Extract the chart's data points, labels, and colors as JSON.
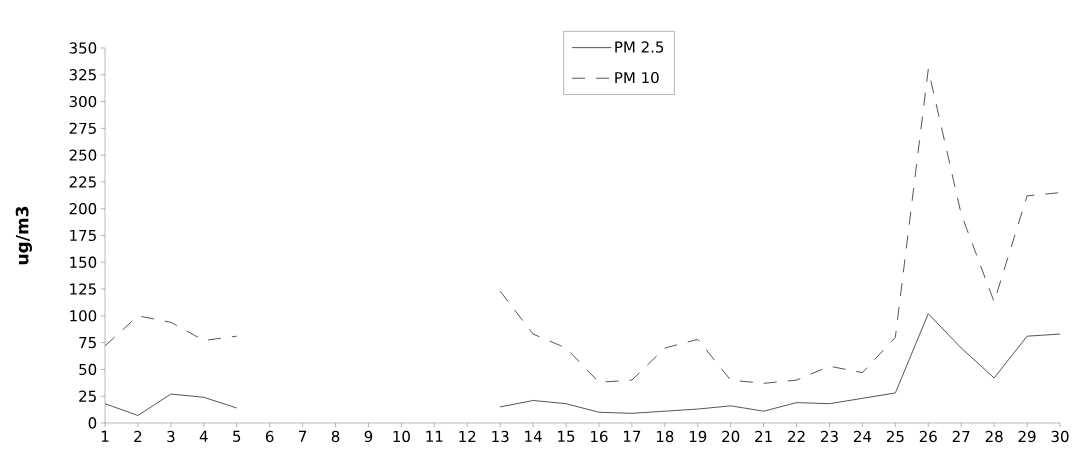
{
  "chart_data": {
    "type": "line",
    "ylabel": "ug/m3",
    "categories": [
      "1",
      "2",
      "3",
      "4",
      "5",
      "6",
      "7",
      "8",
      "9",
      "10",
      "11",
      "12",
      "13",
      "14",
      "15",
      "16",
      "17",
      "18",
      "19",
      "20",
      "21",
      "22",
      "23",
      "24",
      "25",
      "26",
      "27",
      "28",
      "29",
      "30"
    ],
    "ylim": [
      0,
      350
    ],
    "yticks": [
      0,
      25,
      50,
      75,
      100,
      125,
      150,
      175,
      200,
      225,
      250,
      275,
      300,
      325,
      350
    ],
    "legend": "top",
    "grid": false,
    "series": [
      {
        "name": "PM 2.5",
        "color": "#555555",
        "line_style": "solid",
        "values": [
          18,
          7,
          27,
          24,
          14,
          null,
          null,
          null,
          null,
          null,
          null,
          null,
          15,
          21,
          18,
          10,
          9,
          11,
          13,
          16,
          11,
          19,
          18,
          23,
          28,
          102,
          70,
          42,
          81,
          83
        ]
      },
      {
        "name": "PM 10",
        "color": "#555555",
        "line_style": "dashed",
        "values": [
          72,
          100,
          94,
          77,
          81,
          null,
          null,
          null,
          null,
          null,
          null,
          null,
          123,
          83,
          70,
          38,
          40,
          70,
          78,
          40,
          37,
          40,
          53,
          47,
          80,
          330,
          195,
          113,
          212,
          215
        ]
      }
    ]
  }
}
